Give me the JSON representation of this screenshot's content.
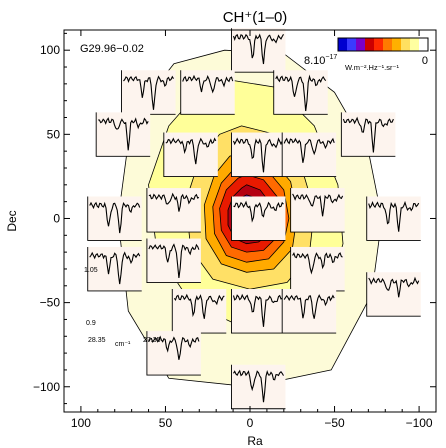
{
  "chart_data": {
    "type": "contour",
    "title": "CH⁺(1–0)",
    "xlabel": "Ra",
    "ylabel": "Dec",
    "xlim": [
      110,
      -110
    ],
    "ylim": [
      -115,
      112
    ],
    "x_ticks": [
      100,
      50,
      0,
      -50,
      -100
    ],
    "y_ticks": [
      100,
      50,
      0,
      -50,
      -100
    ],
    "grid": false,
    "source_label": "G29.96−0.02",
    "colorbar": {
      "min_label": "8.10",
      "min_exp": "−17",
      "max_label": "0",
      "units": "W.m⁻².Hz⁻¹.sr⁻¹",
      "colors": [
        "#0000d0",
        "#3a3aff",
        "#7a00c8",
        "#cc0000",
        "#ff2a00",
        "#ff7a00",
        "#ffb000",
        "#ffe060",
        "#ffffa0",
        "#ffffff"
      ]
    },
    "contours": [
      {
        "level": 1,
        "color": "#fdfbd8",
        "outline": true,
        "rx": 82,
        "ry": 92,
        "cx": 0,
        "cy": 0,
        "points": [
          [
            15,
            100
          ],
          [
            -20,
            98
          ],
          [
            -50,
            75
          ],
          [
            -70,
            40
          ],
          [
            -78,
            0
          ],
          [
            -72,
            -45
          ],
          [
            -48,
            -90
          ],
          [
            0,
            -100
          ],
          [
            48,
            -95
          ],
          [
            72,
            -55
          ],
          [
            78,
            0
          ],
          [
            70,
            60
          ],
          [
            45,
            92
          ]
        ]
      },
      {
        "level": 2,
        "color": "#ffff99",
        "outline": true,
        "points": [
          [
            10,
            82
          ],
          [
            -15,
            78
          ],
          [
            -38,
            55
          ],
          [
            -52,
            20
          ],
          [
            -55,
            -15
          ],
          [
            -45,
            -50
          ],
          [
            -20,
            -62
          ],
          [
            10,
            -62
          ],
          [
            35,
            -50
          ],
          [
            55,
            -20
          ],
          [
            60,
            20
          ],
          [
            48,
            55
          ],
          [
            28,
            78
          ]
        ]
      },
      {
        "level": 3,
        "color": "#ffe066",
        "outline": true,
        "points": [
          [
            5,
            55
          ],
          [
            -15,
            50
          ],
          [
            -30,
            32
          ],
          [
            -38,
            5
          ],
          [
            -35,
            -22
          ],
          [
            -22,
            -38
          ],
          [
            0,
            -42
          ],
          [
            22,
            -36
          ],
          [
            35,
            -18
          ],
          [
            38,
            10
          ],
          [
            30,
            35
          ],
          [
            18,
            50
          ]
        ]
      },
      {
        "level": 4,
        "color": "#ffaa00",
        "outline": true,
        "points": [
          [
            3,
            40
          ],
          [
            -12,
            36
          ],
          [
            -24,
            22
          ],
          [
            -28,
            2
          ],
          [
            -25,
            -18
          ],
          [
            -14,
            -30
          ],
          [
            2,
            -32
          ],
          [
            17,
            -27
          ],
          [
            26,
            -12
          ],
          [
            27,
            8
          ],
          [
            21,
            26
          ],
          [
            12,
            37
          ]
        ]
      },
      {
        "level": 5,
        "color": "#ff6a00",
        "outline": true,
        "points": [
          [
            2,
            32
          ],
          [
            -10,
            29
          ],
          [
            -20,
            17
          ],
          [
            -23,
            0
          ],
          [
            -20,
            -14
          ],
          [
            -11,
            -24
          ],
          [
            2,
            -26
          ],
          [
            14,
            -22
          ],
          [
            21,
            -9
          ],
          [
            22,
            7
          ],
          [
            17,
            21
          ],
          [
            9,
            30
          ]
        ]
      },
      {
        "level": 6,
        "color": "#e81a00",
        "outline": true,
        "points": [
          [
            2,
            26
          ],
          [
            -8,
            23
          ],
          [
            -16,
            13
          ],
          [
            -18,
            0
          ],
          [
            -16,
            -11
          ],
          [
            -8,
            -19
          ],
          [
            2,
            -20
          ],
          [
            11,
            -17
          ],
          [
            17,
            -7
          ],
          [
            18,
            6
          ],
          [
            14,
            17
          ],
          [
            7,
            24
          ]
        ]
      },
      {
        "level": 7,
        "color": "#b40012",
        "outline": true,
        "points": [
          [
            2,
            20
          ],
          [
            -6,
            17
          ],
          [
            -12,
            9
          ],
          [
            -14,
            -1
          ],
          [
            -12,
            -9
          ],
          [
            -5,
            -14
          ],
          [
            2,
            -15
          ],
          [
            9,
            -12
          ],
          [
            13,
            -4
          ],
          [
            13,
            5
          ],
          [
            10,
            13
          ],
          [
            5,
            18
          ]
        ]
      },
      {
        "level": 8,
        "color": "#6a1a9a",
        "outline": true,
        "points": [
          [
            2,
            14
          ],
          [
            -4,
            12
          ],
          [
            -9,
            6
          ],
          [
            -10,
            -1
          ],
          [
            -8,
            -6
          ],
          [
            -3,
            -9
          ],
          [
            2,
            -10
          ],
          [
            6,
            -8
          ],
          [
            9,
            -2
          ],
          [
            9,
            4
          ],
          [
            7,
            10
          ],
          [
            4,
            13
          ]
        ]
      },
      {
        "level": 9,
        "color": "#2222dd",
        "outline": false,
        "points": [
          [
            4,
            12
          ],
          [
            -4,
            11
          ],
          [
            -8,
            6
          ],
          [
            -9,
            0
          ],
          [
            -6,
            -4
          ],
          [
            0,
            -5
          ],
          [
            5,
            -3
          ],
          [
            8,
            2
          ],
          [
            8,
            7
          ],
          [
            6,
            11
          ]
        ]
      }
    ],
    "spectra": {
      "offsets": [
        [
          -5,
          100
        ],
        [
          60,
          75
        ],
        [
          25,
          75
        ],
        [
          -30,
          75
        ],
        [
          75,
          50
        ],
        [
          -70,
          50
        ],
        [
          -5,
          38
        ],
        [
          35,
          38
        ],
        [
          -35,
          38
        ],
        [
          80,
          0
        ],
        [
          45,
          5
        ],
        [
          -40,
          5
        ],
        [
          -85,
          0
        ],
        [
          -5,
          0
        ],
        [
          80,
          -30
        ],
        [
          45,
          -25
        ],
        [
          -40,
          -30
        ],
        [
          -85,
          -45
        ],
        [
          -5,
          -55
        ],
        [
          30,
          -55
        ],
        [
          -35,
          -55
        ],
        [
          45,
          -80
        ],
        [
          -5,
          -100
        ]
      ],
      "example_axis": {
        "y_max_label": "1.05",
        "y_min_label": "0.9",
        "x_left_label": "28.35",
        "x_unit": "cm⁻¹",
        "x_right_label": "27.35"
      }
    }
  }
}
